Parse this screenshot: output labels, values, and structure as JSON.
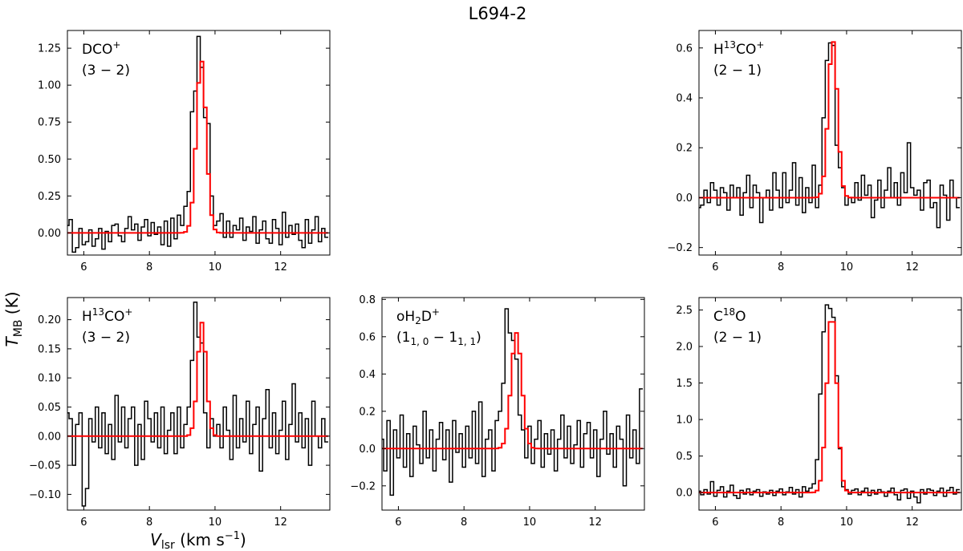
{
  "figure": {
    "title": "L694-2",
    "xlabel": {
      "main": "V",
      "sub": "lsr",
      "unit": " (km s",
      "unit_sup": "−1",
      "unit_end": ")"
    },
    "ylabel": {
      "main": "T",
      "sub": "MB",
      "unit": " (K)"
    },
    "colors": {
      "observed": "#000000",
      "fit": "#ff0000"
    }
  },
  "chart_data": [
    {
      "type": "line",
      "panel": "top-left",
      "label": {
        "line1_base": "DCO",
        "line1_sup": "+",
        "line2": "(3 − 2)"
      },
      "xlim": [
        5.5,
        13.5
      ],
      "ylim": [
        -0.15,
        1.37
      ],
      "xticks": [
        6,
        8,
        10,
        12
      ],
      "yticks": [
        0.0,
        0.25,
        0.5,
        0.75,
        1.0,
        1.25
      ],
      "ytick_labels": [
        "0.00",
        "0.25",
        "0.50",
        "0.75",
        "1.00",
        "1.25"
      ],
      "peak": 1.33,
      "fit_amplitude": 1.17,
      "fit_center": 9.58,
      "fit_sigma": 0.15,
      "noise_rms": 0.045,
      "series": [
        {
          "name": "observed",
          "x": [
            5.5,
            5.6,
            5.7,
            5.8,
            5.9,
            6.0,
            6.1,
            6.2,
            6.3,
            6.4,
            6.5,
            6.6,
            6.7,
            6.8,
            6.9,
            7.0,
            7.1,
            7.2,
            7.3,
            7.4,
            7.5,
            7.6,
            7.7,
            7.8,
            7.9,
            8.0,
            8.1,
            8.2,
            8.3,
            8.4,
            8.5,
            8.6,
            8.7,
            8.8,
            8.9,
            9.0,
            9.1,
            9.2,
            9.3,
            9.4,
            9.5,
            9.6,
            9.7,
            9.8,
            9.9,
            10.0,
            10.1,
            10.2,
            10.3,
            10.4,
            10.5,
            10.6,
            10.7,
            10.8,
            10.9,
            11.0,
            11.1,
            11.2,
            11.3,
            11.4,
            11.5,
            11.6,
            11.7,
            11.8,
            11.9,
            12.0,
            12.1,
            12.2,
            12.3,
            12.4,
            12.5,
            12.6,
            12.7,
            12.8,
            12.9,
            13.0,
            13.1,
            13.2,
            13.3,
            13.4
          ],
          "y": [
            0.05,
            0.09,
            -0.13,
            -0.1,
            0.03,
            -0.08,
            -0.06,
            0.02,
            -0.09,
            -0.04,
            0.03,
            -0.11,
            0.01,
            -0.06,
            0.05,
            0.06,
            -0.02,
            -0.06,
            0.03,
            0.11,
            0.02,
            0.06,
            -0.05,
            0.04,
            0.09,
            -0.02,
            0.07,
            -0.01,
            0.04,
            -0.08,
            0.08,
            -0.09,
            0.1,
            -0.04,
            0.12,
            0.05,
            0.18,
            0.28,
            0.82,
            0.96,
            1.33,
            1.12,
            0.78,
            0.74,
            0.25,
            0.05,
            0.08,
            0.13,
            -0.03,
            0.08,
            -0.03,
            0.05,
            0.02,
            0.1,
            -0.05,
            0.04,
            0.01,
            0.11,
            -0.07,
            0.02,
            0.08,
            -0.04,
            -0.07,
            0.09,
            0.03,
            -0.08,
            0.14,
            -0.03,
            0.05,
            -0.01,
            0.06,
            -0.05,
            -0.1,
            0.09,
            -0.07,
            0.02,
            0.11,
            -0.06,
            0.03,
            -0.03
          ]
        },
        {
          "name": "fit"
        }
      ]
    },
    {
      "type": "line",
      "panel": "top-right",
      "label": {
        "line1_base": "H",
        "line1_sup_pre": "13",
        "line1_base2": "CO",
        "line1_sup": "+",
        "line2": "(2 − 1)"
      },
      "xlim": [
        5.5,
        13.5
      ],
      "ylim": [
        -0.23,
        0.67
      ],
      "xticks": [
        6,
        8,
        10,
        12
      ],
      "yticks": [
        -0.2,
        0.0,
        0.2,
        0.4,
        0.6
      ],
      "ytick_labels": [
        "−0.2",
        "0.0",
        "0.2",
        "0.4",
        "0.6"
      ],
      "peak": 0.63,
      "fit_amplitude": 0.63,
      "fit_center": 9.58,
      "fit_sigma": 0.14,
      "noise_rms": 0.06,
      "series": [
        {
          "name": "observed",
          "x": [
            5.5,
            5.6,
            5.7,
            5.8,
            5.9,
            6.0,
            6.1,
            6.2,
            6.3,
            6.4,
            6.5,
            6.6,
            6.7,
            6.8,
            6.9,
            7.0,
            7.1,
            7.2,
            7.3,
            7.4,
            7.5,
            7.6,
            7.7,
            7.8,
            7.9,
            8.0,
            8.1,
            8.2,
            8.3,
            8.4,
            8.5,
            8.6,
            8.7,
            8.8,
            8.9,
            9.0,
            9.1,
            9.2,
            9.3,
            9.4,
            9.5,
            9.6,
            9.7,
            9.8,
            9.9,
            10.0,
            10.1,
            10.2,
            10.3,
            10.4,
            10.5,
            10.6,
            10.7,
            10.8,
            10.9,
            11.0,
            11.1,
            11.2,
            11.3,
            11.4,
            11.5,
            11.6,
            11.7,
            11.8,
            11.9,
            12.0,
            12.1,
            12.2,
            12.3,
            12.4,
            12.5,
            12.6,
            12.7,
            12.8,
            12.9,
            13.0,
            13.1,
            13.2,
            13.3,
            13.4
          ],
          "y": [
            -0.04,
            -0.03,
            0.03,
            -0.02,
            0.06,
            0.03,
            -0.03,
            0.04,
            0.02,
            -0.05,
            0.05,
            0.0,
            0.04,
            -0.07,
            0.02,
            0.09,
            -0.04,
            0.05,
            0.02,
            -0.1,
            0.0,
            0.03,
            -0.05,
            0.1,
            0.03,
            -0.04,
            0.1,
            -0.02,
            0.03,
            0.14,
            -0.03,
            0.08,
            -0.06,
            0.04,
            -0.02,
            0.13,
            -0.04,
            0.05,
            0.32,
            0.55,
            0.62,
            0.61,
            0.21,
            0.12,
            0.04,
            -0.03,
            0.0,
            -0.02,
            0.06,
            -0.01,
            0.09,
            0.01,
            0.05,
            -0.08,
            -0.01,
            0.07,
            -0.04,
            0.03,
            0.12,
            0.0,
            0.06,
            -0.03,
            0.1,
            0.02,
            0.22,
            0.04,
            0.01,
            0.03,
            -0.05,
            0.06,
            0.07,
            -0.04,
            -0.02,
            -0.12,
            0.05,
            0.01,
            -0.09,
            0.07,
            0.0,
            -0.04
          ]
        },
        {
          "name": "fit"
        }
      ]
    },
    {
      "type": "line",
      "panel": "bottom-left",
      "label": {
        "line1_base": "H",
        "line1_sup_pre": "13",
        "line1_base2": "CO",
        "line1_sup": "+",
        "line2": "(3 − 2)"
      },
      "xlim": [
        5.5,
        13.5
      ],
      "ylim": [
        -0.127,
        0.238
      ],
      "xticks": [
        6,
        8,
        10,
        12
      ],
      "yticks": [
        -0.1,
        -0.05,
        0.0,
        0.05,
        0.1,
        0.15,
        0.2
      ],
      "ytick_labels": [
        "−0.10",
        "−0.05",
        "0.00",
        "0.05",
        "0.10",
        "0.15",
        "0.20"
      ],
      "peak": 0.23,
      "fit_amplitude": 0.195,
      "fit_center": 9.6,
      "fit_sigma": 0.13,
      "noise_rms": 0.035,
      "series": [
        {
          "name": "observed",
          "x": [
            5.5,
            5.6,
            5.7,
            5.8,
            5.9,
            6.0,
            6.1,
            6.2,
            6.3,
            6.4,
            6.5,
            6.6,
            6.7,
            6.8,
            6.9,
            7.0,
            7.1,
            7.2,
            7.3,
            7.4,
            7.5,
            7.6,
            7.7,
            7.8,
            7.9,
            8.0,
            8.1,
            8.2,
            8.3,
            8.4,
            8.5,
            8.6,
            8.7,
            8.8,
            8.9,
            9.0,
            9.1,
            9.2,
            9.3,
            9.4,
            9.5,
            9.6,
            9.7,
            9.8,
            9.9,
            10.0,
            10.1,
            10.2,
            10.3,
            10.4,
            10.5,
            10.6,
            10.7,
            10.8,
            10.9,
            11.0,
            11.1,
            11.2,
            11.3,
            11.4,
            11.5,
            11.6,
            11.7,
            11.8,
            11.9,
            12.0,
            12.1,
            12.2,
            12.3,
            12.4,
            12.5,
            12.6,
            12.7,
            12.8,
            12.9,
            13.0,
            13.1,
            13.2,
            13.3,
            13.4
          ],
          "y": [
            0.04,
            0.03,
            -0.05,
            0.02,
            0.04,
            -0.12,
            -0.09,
            0.03,
            -0.01,
            0.05,
            -0.02,
            0.04,
            -0.03,
            0.02,
            -0.04,
            0.07,
            -0.01,
            0.05,
            -0.02,
            0.03,
            0.05,
            -0.05,
            0.02,
            -0.04,
            0.06,
            0.03,
            -0.01,
            0.04,
            -0.02,
            0.05,
            -0.03,
            0.01,
            0.04,
            -0.03,
            0.05,
            -0.02,
            0.02,
            0.05,
            0.13,
            0.23,
            0.17,
            0.16,
            0.04,
            -0.02,
            0.03,
            0.0,
            0.02,
            -0.02,
            0.05,
            0.01,
            -0.04,
            0.07,
            -0.02,
            0.03,
            -0.01,
            0.06,
            -0.03,
            0.02,
            0.05,
            -0.06,
            0.03,
            0.08,
            -0.02,
            0.04,
            -0.03,
            0.01,
            0.06,
            -0.04,
            0.02,
            0.09,
            -0.01,
            0.04,
            -0.02,
            0.03,
            -0.05,
            0.06,
            0.0,
            -0.02,
            0.03,
            -0.01
          ]
        },
        {
          "name": "fit"
        }
      ]
    },
    {
      "type": "line",
      "panel": "bottom-center",
      "label": {
        "line1_base": "oH",
        "line1_sub": "2",
        "line1_base2": "D",
        "line1_sup": "+",
        "line2_pre": "(1",
        "line2_sub1": "1, 0",
        "line2_mid": " − 1",
        "line2_sub2": "1, 1",
        "line2_end": ")"
      },
      "xlim": [
        5.5,
        13.5
      ],
      "ylim": [
        -0.33,
        0.81
      ],
      "xticks": [
        6,
        8,
        10,
        12
      ],
      "yticks": [
        -0.2,
        0.0,
        0.2,
        0.4,
        0.6,
        0.8
      ],
      "ytick_labels": [
        "−0.2",
        "0.0",
        "0.2",
        "0.4",
        "0.6",
        "0.8"
      ],
      "peak": 0.75,
      "fit_amplitude": 0.62,
      "fit_center": 9.6,
      "fit_sigma": 0.16,
      "noise_rms": 0.1,
      "series": [
        {
          "name": "observed",
          "x": [
            5.5,
            5.6,
            5.7,
            5.8,
            5.9,
            6.0,
            6.1,
            6.2,
            6.3,
            6.4,
            6.5,
            6.6,
            6.7,
            6.8,
            6.9,
            7.0,
            7.1,
            7.2,
            7.3,
            7.4,
            7.5,
            7.6,
            7.7,
            7.8,
            7.9,
            8.0,
            8.1,
            8.2,
            8.3,
            8.4,
            8.5,
            8.6,
            8.7,
            8.8,
            8.9,
            9.0,
            9.1,
            9.2,
            9.3,
            9.4,
            9.5,
            9.6,
            9.7,
            9.8,
            9.9,
            10.0,
            10.1,
            10.2,
            10.3,
            10.4,
            10.5,
            10.6,
            10.7,
            10.8,
            10.9,
            11.0,
            11.1,
            11.2,
            11.3,
            11.4,
            11.5,
            11.6,
            11.7,
            11.8,
            11.9,
            12.0,
            12.1,
            12.2,
            12.3,
            12.4,
            12.5,
            12.6,
            12.7,
            12.8,
            12.9,
            13.0,
            13.1,
            13.2,
            13.3,
            13.4
          ],
          "y": [
            0.05,
            -0.12,
            0.15,
            -0.25,
            0.1,
            -0.05,
            0.18,
            -0.1,
            0.08,
            -0.15,
            0.12,
            0.02,
            -0.08,
            0.2,
            -0.05,
            0.1,
            -0.12,
            0.05,
            0.14,
            -0.06,
            0.1,
            -0.18,
            0.15,
            -0.02,
            0.08,
            -0.1,
            0.12,
            -0.05,
            0.2,
            -0.08,
            0.25,
            -0.15,
            0.05,
            0.1,
            -0.12,
            0.15,
            0.2,
            0.35,
            0.75,
            0.62,
            0.58,
            0.48,
            0.18,
            0.1,
            -0.05,
            0.12,
            -0.08,
            0.05,
            0.15,
            -0.1,
            0.08,
            -0.03,
            0.1,
            -0.12,
            0.05,
            0.18,
            -0.05,
            0.12,
            -0.08,
            0.02,
            0.15,
            -0.1,
            0.08,
            0.14,
            -0.05,
            0.1,
            -0.15,
            0.05,
            0.2,
            -0.03,
            0.08,
            -0.1,
            0.12,
            0.05,
            -0.2,
            0.18,
            -0.05,
            0.1,
            -0.08,
            0.32
          ]
        },
        {
          "name": "fit"
        }
      ]
    },
    {
      "type": "line",
      "panel": "bottom-right",
      "label": {
        "line1_base": "C",
        "line1_sup_pre": "18",
        "line1_base2": "O",
        "line2": "(2 − 1)"
      },
      "xlim": [
        5.5,
        13.5
      ],
      "ylim": [
        -0.24,
        2.67
      ],
      "xticks": [
        6,
        8,
        10,
        12
      ],
      "yticks": [
        0.0,
        0.5,
        1.0,
        1.5,
        2.0,
        2.5
      ],
      "ytick_labels": [
        "0.0",
        "0.5",
        "1.0",
        "1.5",
        "2.0",
        "2.5"
      ],
      "peak": 2.57,
      "fit_amplitude": 2.47,
      "fit_center": 9.55,
      "fit_sigma": 0.15,
      "noise_rms": 0.05,
      "series": [
        {
          "name": "observed",
          "x": [
            5.5,
            5.6,
            5.7,
            5.8,
            5.9,
            6.0,
            6.1,
            6.2,
            6.3,
            6.4,
            6.5,
            6.6,
            6.7,
            6.8,
            6.9,
            7.0,
            7.1,
            7.2,
            7.3,
            7.4,
            7.5,
            7.6,
            7.7,
            7.8,
            7.9,
            8.0,
            8.1,
            8.2,
            8.3,
            8.4,
            8.5,
            8.6,
            8.7,
            8.8,
            8.9,
            9.0,
            9.1,
            9.2,
            9.3,
            9.4,
            9.5,
            9.6,
            9.7,
            9.8,
            9.9,
            10.0,
            10.1,
            10.2,
            10.3,
            10.4,
            10.5,
            10.6,
            10.7,
            10.8,
            10.9,
            11.0,
            11.1,
            11.2,
            11.3,
            11.4,
            11.5,
            11.6,
            11.7,
            11.8,
            11.9,
            12.0,
            12.1,
            12.2,
            12.3,
            12.4,
            12.5,
            12.6,
            12.7,
            12.8,
            12.9,
            13.0,
            13.1,
            13.2,
            13.3,
            13.4
          ],
          "y": [
            0.02,
            -0.03,
            0.04,
            -0.02,
            0.15,
            -0.05,
            0.03,
            0.08,
            -0.06,
            0.02,
            0.1,
            -0.04,
            -0.08,
            0.03,
            -0.02,
            0.05,
            -0.03,
            0.02,
            0.04,
            -0.05,
            0.01,
            -0.02,
            0.03,
            -0.04,
            0.02,
            0.05,
            -0.03,
            0.01,
            0.07,
            -0.02,
            0.04,
            -0.06,
            0.08,
            0.02,
            0.06,
            0.12,
            0.45,
            1.35,
            2.2,
            2.57,
            2.52,
            2.4,
            1.6,
            0.6,
            0.08,
            0.04,
            -0.02,
            0.03,
            0.05,
            -0.03,
            0.02,
            0.06,
            -0.04,
            0.03,
            -0.02,
            0.04,
            0.01,
            -0.05,
            0.02,
            0.06,
            -0.03,
            -0.1,
            0.03,
            0.05,
            -0.08,
            0.02,
            -0.06,
            -0.14,
            0.04,
            -0.02,
            0.05,
            0.03,
            -0.04,
            0.02,
            0.06,
            -0.05,
            0.03,
            0.07,
            -0.02,
            0.04
          ]
        },
        {
          "name": "fit"
        }
      ]
    }
  ]
}
